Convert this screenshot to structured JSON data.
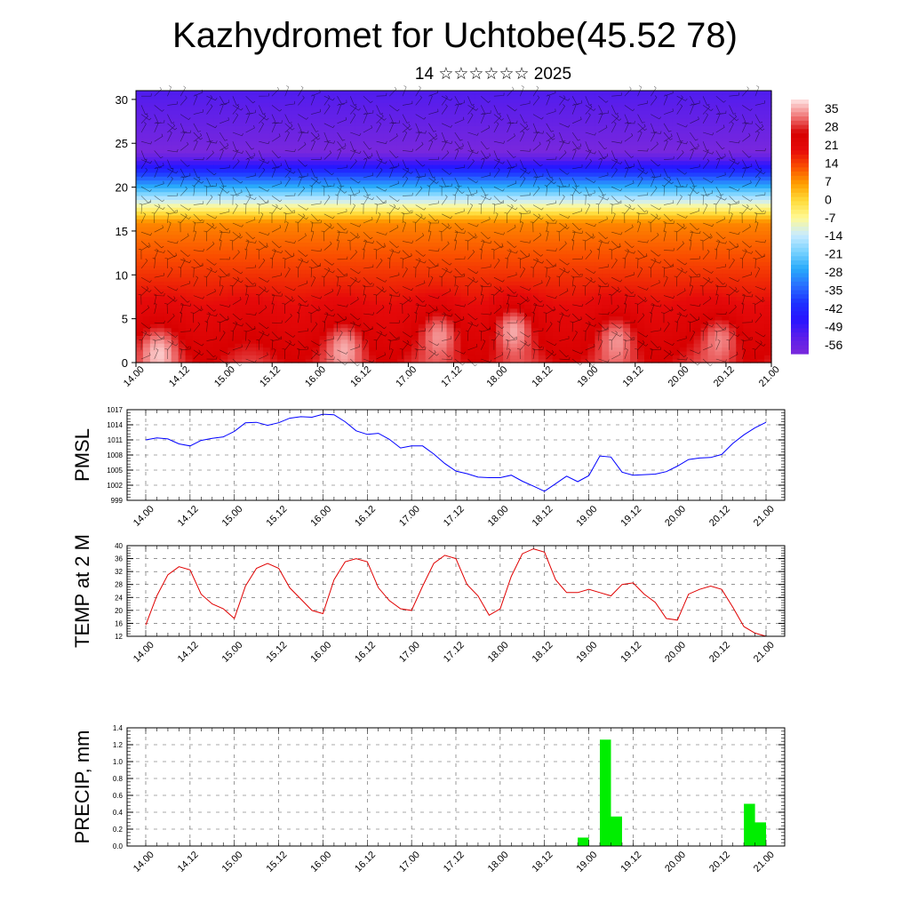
{
  "header": {
    "title": "Kazhydromet for Uchtobe(45.52 78)",
    "subtitle": "14 ☆☆☆☆☆☆ 2025"
  },
  "time_labels": [
    "14.00",
    "14.12",
    "15.00",
    "15.12",
    "16.00",
    "16.12",
    "17.00",
    "17.12",
    "18.00",
    "18.12",
    "19.00",
    "19.12",
    "20.00",
    "20.12",
    "21.00"
  ],
  "chart_data": [
    {
      "type": "heatmap",
      "name": "vertical-cross-section",
      "x_categories": [
        "14.00",
        "14.12",
        "15.00",
        "15.12",
        "16.00",
        "16.12",
        "17.00",
        "17.12",
        "18.00",
        "18.12",
        "19.00",
        "19.12",
        "20.00",
        "20.12",
        "21.00"
      ],
      "y_ticks": [
        0,
        5,
        10,
        15,
        20,
        25,
        30
      ],
      "ylim": [
        0,
        31
      ],
      "colorbar_labels": [
        "35",
        "28",
        "21",
        "14",
        "7",
        "0",
        "-7",
        "-14",
        "-21",
        "-28",
        "-35",
        "-42",
        "-49",
        "-56"
      ],
      "colorbar_range": [
        -63,
        42
      ],
      "warm_cores": [
        {
          "x": 14.25,
          "y": 1.5,
          "value": 38
        },
        {
          "x": 16.3,
          "y": 2.0,
          "value": 37
        },
        {
          "x": 17.35,
          "y": 3.5,
          "value": 38
        },
        {
          "x": 18.15,
          "y": 4.0,
          "value": 40
        },
        {
          "x": 19.3,
          "y": 3.0,
          "value": 37
        },
        {
          "x": 20.45,
          "y": 3.0,
          "value": 37
        }
      ],
      "colors": {
        "warm": "#e00000",
        "cold": "#2020ff",
        "coldest": "#7a2ee6",
        "neutral": "#ffff66"
      }
    },
    {
      "type": "line",
      "name": "pmsl",
      "ylabel": "PMSL",
      "ylim": [
        999,
        1017
      ],
      "y_ticks": [
        999,
        1002,
        1005,
        1008,
        1011,
        1014,
        1017
      ],
      "x_categories": [
        "14.00",
        "14.12",
        "15.00",
        "15.12",
        "16.00",
        "16.12",
        "17.00",
        "17.12",
        "18.00",
        "18.12",
        "19.00",
        "19.12",
        "20.00",
        "20.12",
        "21.00"
      ],
      "x": [
        14.0,
        14.125,
        14.25,
        14.375,
        14.5,
        14.625,
        14.75,
        14.875,
        15.0,
        15.125,
        15.25,
        15.375,
        15.5,
        15.625,
        15.75,
        15.875,
        16.0,
        16.125,
        16.25,
        16.375,
        16.5,
        16.625,
        16.75,
        16.875,
        17.0,
        17.125,
        17.25,
        17.375,
        17.5,
        17.625,
        17.75,
        17.875,
        18.0,
        18.125,
        18.25,
        18.375,
        18.5,
        18.625,
        18.75,
        18.875,
        19.0,
        19.125,
        19.25,
        19.375,
        19.5,
        19.625,
        19.75,
        19.875,
        20.0,
        20.125,
        20.25,
        20.375,
        20.5,
        20.625,
        20.75,
        20.875,
        21.0
      ],
      "values": [
        1011,
        1011.4,
        1011.2,
        1010.2,
        1009.8,
        1010.9,
        1011.3,
        1011.6,
        1012.7,
        1014.4,
        1014.5,
        1013.9,
        1014.4,
        1015.3,
        1015.6,
        1015.5,
        1016.1,
        1016.0,
        1014.6,
        1012.8,
        1012.1,
        1012.3,
        1011.1,
        1009.4,
        1009.8,
        1009.8,
        1008.2,
        1006.3,
        1004.8,
        1004.3,
        1003.6,
        1003.5,
        1003.5,
        1004.0,
        1002.8,
        1001.8,
        1000.8,
        1002.3,
        1003.8,
        1002.7,
        1003.9,
        1007.8,
        1007.6,
        1004.6,
        1004.0,
        1004.1,
        1004.2,
        1004.7,
        1005.8,
        1007.1,
        1007.4,
        1007.5,
        1008.1,
        1010.3,
        1012.0,
        1013.4,
        1014.5
      ],
      "color": "#0000ff"
    },
    {
      "type": "line",
      "name": "temp-2m",
      "ylabel": "TEMP at 2 M",
      "ylim": [
        12,
        40
      ],
      "y_ticks": [
        12,
        16,
        20,
        24,
        28,
        32,
        36,
        40
      ],
      "x_categories": [
        "14.00",
        "14.12",
        "15.00",
        "15.12",
        "16.00",
        "16.12",
        "17.00",
        "17.12",
        "18.00",
        "18.12",
        "19.00",
        "19.12",
        "20.00",
        "20.12",
        "21.00"
      ],
      "x": [
        14.0,
        14.125,
        14.25,
        14.375,
        14.5,
        14.625,
        14.75,
        14.875,
        15.0,
        15.125,
        15.25,
        15.375,
        15.5,
        15.625,
        15.75,
        15.875,
        16.0,
        16.125,
        16.25,
        16.375,
        16.5,
        16.625,
        16.75,
        16.875,
        17.0,
        17.125,
        17.25,
        17.375,
        17.5,
        17.625,
        17.75,
        17.875,
        18.0,
        18.125,
        18.25,
        18.375,
        18.5,
        18.625,
        18.75,
        18.875,
        19.0,
        19.125,
        19.25,
        19.375,
        19.5,
        19.625,
        19.75,
        19.875,
        20.0,
        20.125,
        20.25,
        20.375,
        20.5,
        20.625,
        20.75,
        20.875,
        21.0
      ],
      "values": [
        15.5,
        24.5,
        31.0,
        33.5,
        32.5,
        25.0,
        22.0,
        20.5,
        17.5,
        27.5,
        33.0,
        34.5,
        33.0,
        27.0,
        23.5,
        20.0,
        19.0,
        29.5,
        35.0,
        36.0,
        35.0,
        27.0,
        23.0,
        20.5,
        20.0,
        27.5,
        34.5,
        37.0,
        36.0,
        28.0,
        24.5,
        18.5,
        20.5,
        30.5,
        37.5,
        39.0,
        38.0,
        29.5,
        25.5,
        25.5,
        26.5,
        25.5,
        24.5,
        28.0,
        28.5,
        25.0,
        22.5,
        17.5,
        17.0,
        25.0,
        26.5,
        27.5,
        26.5,
        21.0,
        15.0,
        13.0,
        12.0
      ],
      "color": "#e00000"
    },
    {
      "type": "bar",
      "name": "precip",
      "ylabel": "PRECIP, mm",
      "ylim": [
        0,
        1.4
      ],
      "y_ticks": [
        "0.0",
        "0.2",
        "0.4",
        "0.6",
        "0.8",
        "1.0",
        "1.2",
        "1.4"
      ],
      "x_categories": [
        "14.00",
        "14.12",
        "15.00",
        "15.12",
        "16.00",
        "16.12",
        "17.00",
        "17.12",
        "18.00",
        "18.12",
        "19.00",
        "19.12",
        "20.00",
        "20.12",
        "21.00"
      ],
      "bars": [
        {
          "x": 18.9375,
          "value": 0.1
        },
        {
          "x": 19.1875,
          "value": 1.26
        },
        {
          "x": 19.3125,
          "value": 0.35
        },
        {
          "x": 20.8125,
          "value": 0.5
        },
        {
          "x": 20.9375,
          "value": 0.28
        }
      ],
      "color": "#00ee00"
    }
  ]
}
